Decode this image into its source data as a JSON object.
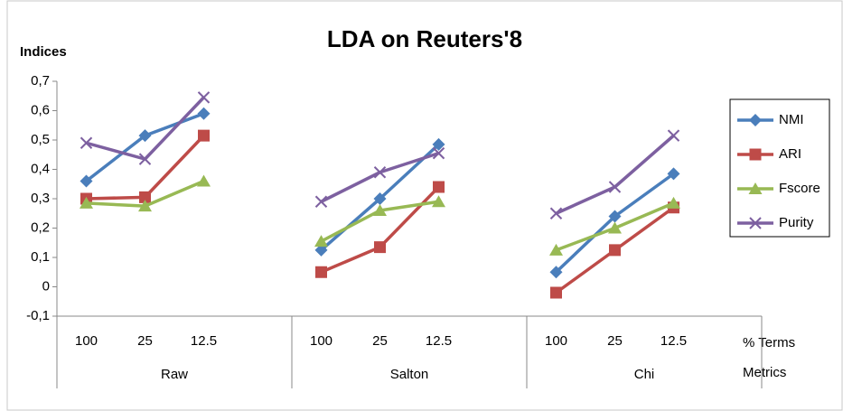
{
  "chart_data": {
    "type": "line",
    "title": "LDA on Reuters'8",
    "y_label": "Indices",
    "x_label": "% Terms",
    "group_label": "Metrics",
    "groups": [
      {
        "name": "Raw",
        "categories": [
          "100",
          "25",
          "12.5"
        ]
      },
      {
        "name": "Salton",
        "categories": [
          "100",
          "25",
          "12.5"
        ]
      },
      {
        "name": "Chi",
        "categories": [
          "100",
          "25",
          "12.5"
        ]
      }
    ],
    "series": [
      {
        "name": "NMI",
        "color": "#4a7ebb",
        "marker": "diamond",
        "values": [
          0.36,
          0.515,
          0.59,
          0.125,
          0.3,
          0.485,
          0.05,
          0.24,
          0.385
        ]
      },
      {
        "name": "ARI",
        "color": "#be4b48",
        "marker": "square",
        "values": [
          0.3,
          0.305,
          0.515,
          0.05,
          0.135,
          0.34,
          -0.02,
          0.125,
          0.27
        ]
      },
      {
        "name": "Fscore",
        "color": "#98b954",
        "marker": "triangle",
        "values": [
          0.285,
          0.275,
          0.36,
          0.155,
          0.26,
          0.29,
          0.125,
          0.2,
          0.285
        ]
      },
      {
        "name": "Purity",
        "color": "#7d60a0",
        "marker": "x",
        "values": [
          0.49,
          0.435,
          0.645,
          0.29,
          0.39,
          0.455,
          0.25,
          0.34,
          0.515
        ]
      }
    ],
    "ylim": [
      -0.1,
      0.7
    ],
    "yticks": [
      {
        "value": -0.1,
        "label": "-0,1"
      },
      0,
      {
        "value": 0.1,
        "label": "0,1"
      },
      {
        "value": 0.2,
        "label": "0,2"
      },
      {
        "value": 0.3,
        "label": "0,3"
      },
      {
        "value": 0.4,
        "label": "0,4"
      },
      {
        "value": 0.5,
        "label": "0,5"
      },
      {
        "value": 0.6,
        "label": "0,6"
      },
      {
        "value": 0.7,
        "label": "0,7"
      }
    ],
    "legend": "right"
  }
}
